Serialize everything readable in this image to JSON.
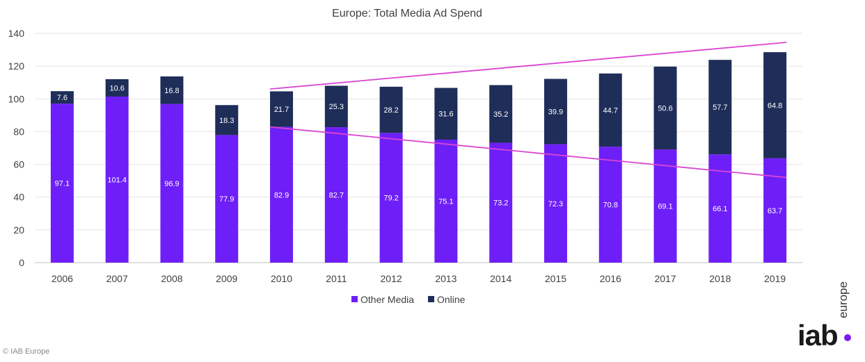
{
  "chart_data": {
    "type": "bar",
    "stacked": true,
    "title": "Europe: Total Media Ad Spend",
    "categories": [
      "2006",
      "2007",
      "2008",
      "2009",
      "2010",
      "2011",
      "2012",
      "2013",
      "2014",
      "2015",
      "2016",
      "2017",
      "2018",
      "2019"
    ],
    "series": [
      {
        "name": "Other Media",
        "color": "#6e1ff7",
        "values": [
          97.1,
          101.4,
          96.9,
          77.9,
          82.9,
          82.7,
          79.2,
          75.1,
          73.2,
          72.3,
          70.8,
          69.1,
          66.1,
          63.7
        ]
      },
      {
        "name": "Online",
        "color": "#1f2d59",
        "values": [
          7.6,
          10.6,
          16.8,
          18.3,
          21.7,
          25.3,
          28.2,
          31.6,
          35.2,
          39.9,
          44.7,
          50.6,
          57.7,
          64.8
        ]
      }
    ],
    "trend_lines": [
      {
        "color": "#d946d2",
        "from": [
          "2010",
          106
        ],
        "to": [
          "2019",
          134.5
        ]
      },
      {
        "color": "#d946d2",
        "from": [
          "2010",
          82.9
        ],
        "to": [
          "2019",
          52
        ]
      }
    ],
    "ylim": [
      0,
      140
    ],
    "yticks": [
      0,
      20,
      40,
      60,
      80,
      100,
      120,
      140
    ],
    "grid": true,
    "legend": "bottom-center"
  },
  "footer": {
    "copyright": "© IAB Europe",
    "logo_main": "iab",
    "logo_side": "europe"
  }
}
